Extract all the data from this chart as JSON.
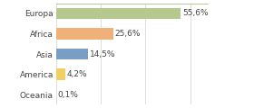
{
  "categories": [
    "Europa",
    "Africa",
    "Asia",
    "America",
    "Oceania"
  ],
  "values": [
    55.6,
    25.6,
    14.5,
    4.2,
    0.1
  ],
  "labels": [
    "55,6%",
    "25,6%",
    "14,5%",
    "4,2%",
    "0,1%"
  ],
  "bar_colors": [
    "#b5c98e",
    "#f0b07a",
    "#7a9dc5",
    "#f0d060",
    "#c0c0c0"
  ],
  "background_color": "#ffffff",
  "xlim": [
    0,
    68
  ],
  "bar_height": 0.55,
  "label_fontsize": 6.5,
  "tick_fontsize": 6.5,
  "grid_color": "#d0d0d0",
  "border_color": "#b8c9a0"
}
